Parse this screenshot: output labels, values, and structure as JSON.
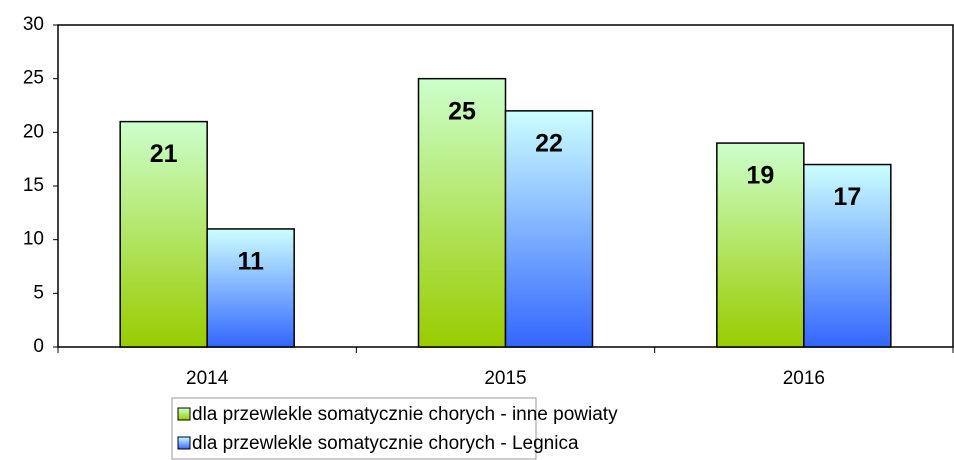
{
  "chart_data": {
    "type": "bar",
    "categories": [
      "2014",
      "2015",
      "2016"
    ],
    "series": [
      {
        "name": "dla przewlekle somatycznie chorych - inne powiaty",
        "color": "#99cc00",
        "gradient": [
          "#ccffcc",
          "#99cc00"
        ],
        "values": [
          21,
          25,
          19
        ]
      },
      {
        "name": "dla przewlekle somatycznie chorych - Legnica",
        "color": "#3366ff",
        "gradient": [
          "#ccffff",
          "#3366ff"
        ],
        "values": [
          11,
          22,
          17
        ]
      }
    ],
    "ylim": [
      0,
      30
    ],
    "yticks": [
      0,
      5,
      10,
      15,
      20,
      25,
      30
    ],
    "grid": false,
    "legend": "bottom"
  }
}
